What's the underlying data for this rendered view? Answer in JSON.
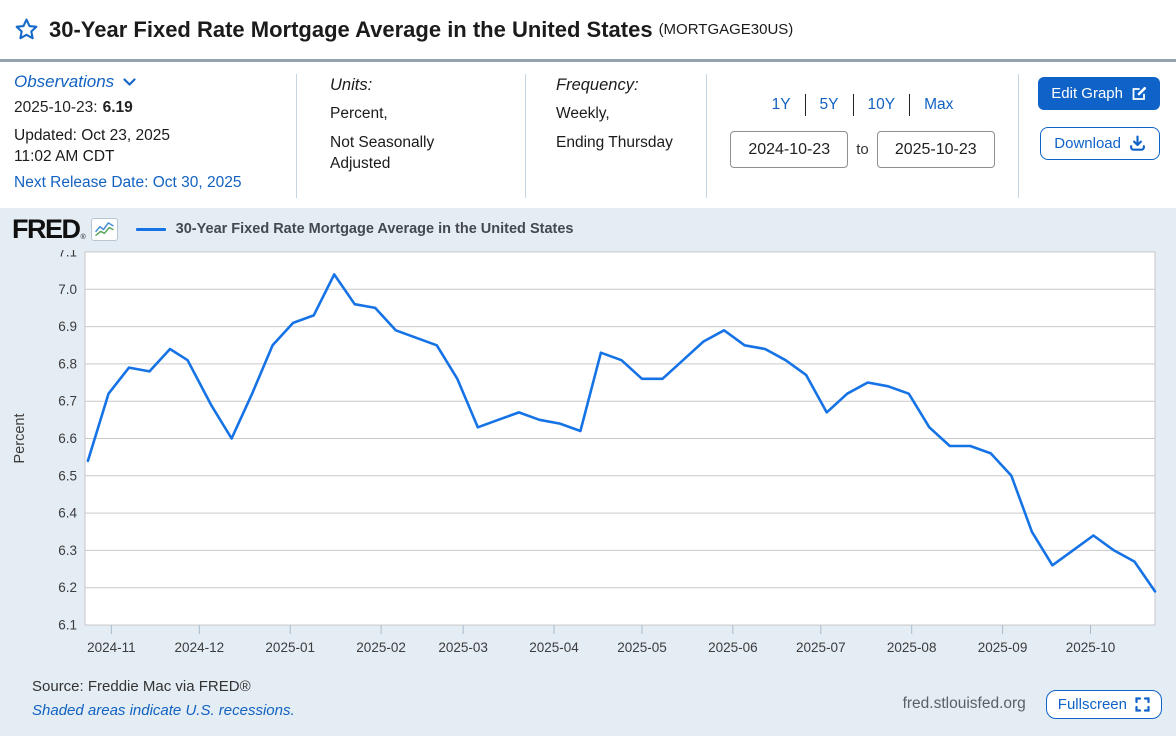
{
  "header": {
    "title": "30-Year Fixed Rate Mortgage Average in the United States",
    "series_id": "(MORTGAGE30US)"
  },
  "observations": {
    "label": "Observations",
    "latest_date": "2025-10-23:",
    "latest_value": "6.19",
    "updated_line1": "Updated: Oct 23, 2025",
    "updated_line2": "11:02 AM CDT",
    "next_release": "Next Release Date: Oct 30, 2025"
  },
  "units": {
    "label": "Units:",
    "line1": "Percent,",
    "line2": "Not Seasonally Adjusted"
  },
  "frequency": {
    "label": "Frequency:",
    "line1": "Weekly,",
    "line2": "Ending Thursday"
  },
  "range": {
    "presets": [
      "1Y",
      "5Y",
      "10Y",
      "Max"
    ],
    "start": "2024-10-23",
    "to_label": "to",
    "end": "2025-10-23"
  },
  "actions": {
    "edit_graph": "Edit Graph",
    "download": "Download"
  },
  "legend": {
    "brand": "FRED",
    "brand_mark": "®",
    "series_label": "30-Year Fixed Rate Mortgage Average in the United States"
  },
  "footer": {
    "source": "Source: Freddie Mac via FRED®",
    "recession_note": "Shaded areas indicate U.S. recessions.",
    "site": "fred.stlouisfed.org",
    "fullscreen": "Fullscreen"
  },
  "colors": {
    "accent": "#1262c1",
    "button": "#0f63c8",
    "line": "#1673e6",
    "chart_bg": "#e4ecf4",
    "grid": "#c9c9c9"
  },
  "chart_data": {
    "type": "line",
    "title": "30-Year Fixed Rate Mortgage Average in the United States",
    "xlabel": "",
    "ylabel": "Percent",
    "ylim": [
      6.1,
      7.1
    ],
    "ytick_step": 0.1,
    "x_start": "2024-10-23",
    "x_end": "2025-10-23",
    "x_ticks": [
      "2024-11",
      "2024-12",
      "2025-01",
      "2025-02",
      "2025-03",
      "2025-04",
      "2025-05",
      "2025-06",
      "2025-07",
      "2025-08",
      "2025-09",
      "2025-10"
    ],
    "grid": true,
    "legend_position": "top-left",
    "series": [
      {
        "name": "30-Year Fixed Rate Mortgage Average in the United States",
        "x": [
          "2024-10-24",
          "2024-10-31",
          "2024-11-07",
          "2024-11-14",
          "2024-11-21",
          "2024-11-27",
          "2024-12-05",
          "2024-12-12",
          "2024-12-19",
          "2024-12-26",
          "2025-01-02",
          "2025-01-09",
          "2025-01-16",
          "2025-01-23",
          "2025-01-30",
          "2025-02-06",
          "2025-02-13",
          "2025-02-20",
          "2025-02-27",
          "2025-03-06",
          "2025-03-13",
          "2025-03-20",
          "2025-03-27",
          "2025-04-03",
          "2025-04-10",
          "2025-04-17",
          "2025-04-24",
          "2025-05-01",
          "2025-05-08",
          "2025-05-15",
          "2025-05-22",
          "2025-05-29",
          "2025-06-05",
          "2025-06-12",
          "2025-06-19",
          "2025-06-26",
          "2025-07-03",
          "2025-07-10",
          "2025-07-17",
          "2025-07-24",
          "2025-07-31",
          "2025-08-07",
          "2025-08-14",
          "2025-08-21",
          "2025-08-28",
          "2025-09-04",
          "2025-09-11",
          "2025-09-18",
          "2025-09-25",
          "2025-10-02",
          "2025-10-09",
          "2025-10-16",
          "2025-10-23"
        ],
        "values": [
          6.54,
          6.72,
          6.79,
          6.78,
          6.84,
          6.81,
          6.69,
          6.6,
          6.72,
          6.85,
          6.91,
          6.93,
          7.04,
          6.96,
          6.95,
          6.89,
          6.87,
          6.85,
          6.76,
          6.63,
          6.65,
          6.67,
          6.65,
          6.64,
          6.62,
          6.83,
          6.81,
          6.76,
          6.76,
          6.81,
          6.86,
          6.89,
          6.85,
          6.84,
          6.81,
          6.77,
          6.67,
          6.72,
          6.75,
          6.74,
          6.72,
          6.63,
          6.58,
          6.58,
          6.56,
          6.5,
          6.35,
          6.26,
          6.3,
          6.34,
          6.3,
          6.27,
          6.19
        ]
      }
    ]
  }
}
